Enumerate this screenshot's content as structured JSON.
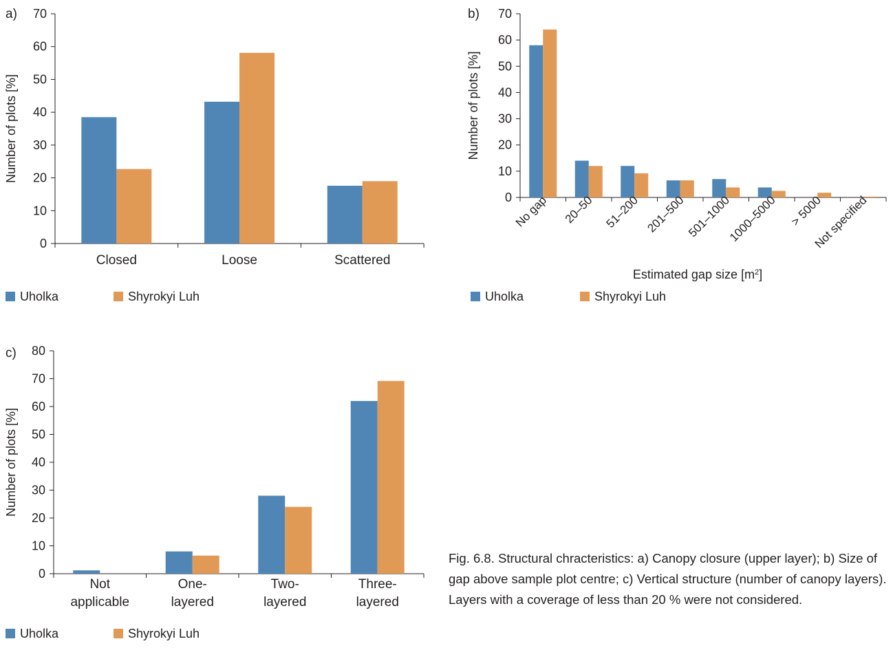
{
  "colors": {
    "uholka": "#4f86b6",
    "shyrokyi": "#e09a56",
    "axis": "#231f20"
  },
  "charts": [
    {
      "panel_label": "a)",
      "legend": [
        "Uholka",
        "Shyrokyi Luh"
      ],
      "ylabel": "Number of plots [%]"
    },
    {
      "panel_label": "b)",
      "legend": [
        "Uholka",
        "Shyrokyi Luh"
      ],
      "ylabel": "Number of plots [%]",
      "xlabel_text": "Estimated gap size [m",
      "xlabel_sup": "2",
      "xlabel_end": "]"
    },
    {
      "panel_label": "c)",
      "legend": [
        "Uholka",
        "Shyrokyi Luh"
      ],
      "ylabel": "Number of plots [%]"
    }
  ],
  "chart_data": [
    {
      "type": "bar",
      "categories": [
        "Closed",
        "Loose",
        "Scattered"
      ],
      "series": [
        {
          "name": "Uholka",
          "values": [
            38.5,
            43.2,
            17.6
          ]
        },
        {
          "name": "Shyrokyi Luh",
          "values": [
            22.7,
            58.1,
            19
          ]
        }
      ],
      "xlabel": "",
      "ylabel": "Number of plots [%]",
      "ylim": [
        0,
        70
      ],
      "yticks": [
        0,
        10,
        20,
        30,
        40,
        50,
        60,
        70
      ],
      "grid": false,
      "legend": "bottom-left"
    },
    {
      "type": "bar",
      "categories": [
        "No gap",
        "20–50",
        "51–200",
        "201–500",
        "501–1000",
        "1000–5000",
        "> 5000",
        "Not specified"
      ],
      "series": [
        {
          "name": "Uholka",
          "values": [
            58,
            14,
            12,
            6.5,
            7,
            3.8,
            0,
            0
          ]
        },
        {
          "name": "Shyrokyi Luh",
          "values": [
            64,
            12,
            9.2,
            6.5,
            3.8,
            2.5,
            1.8,
            0.3
          ]
        }
      ],
      "xlabel": "Estimated gap size [m2]",
      "ylabel": "Number of plots [%]",
      "ylim": [
        0,
        70
      ],
      "yticks": [
        0,
        10,
        20,
        30,
        40,
        50,
        60,
        70
      ],
      "grid": false,
      "legend": "bottom-left"
    },
    {
      "type": "bar",
      "categories": [
        "Not applicable",
        "One-layered",
        "Two-layered",
        "Three-layered"
      ],
      "category_lines": [
        [
          "Not",
          "applicable"
        ],
        [
          "One-",
          "layered"
        ],
        [
          "Two-",
          "layered"
        ],
        [
          "Three-",
          "layered"
        ]
      ],
      "series": [
        {
          "name": "Uholka",
          "values": [
            1.2,
            8,
            28,
            62
          ]
        },
        {
          "name": "Shyrokyi Luh",
          "values": [
            0,
            6.5,
            24,
            69.2
          ]
        }
      ],
      "xlabel": "",
      "ylabel": "Number of plots [%]",
      "ylim": [
        0,
        80
      ],
      "yticks": [
        0,
        10,
        20,
        30,
        40,
        50,
        60,
        70,
        80
      ],
      "grid": false,
      "legend": "bottom-left"
    }
  ],
  "caption": "Fig. 6.8. Structural chracteristics: a) Canopy closure (upper layer); b) Size of gap above sample plot centre; c) Vertical structure (number of canopy layers). Layers with a coverage of less than 20 % were not considered."
}
